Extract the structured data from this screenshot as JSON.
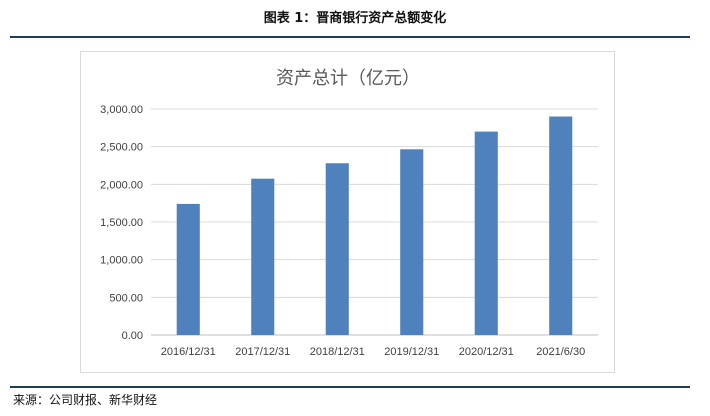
{
  "figure": {
    "caption": "图表 1：晋商银行资产总额变化",
    "source": "来源：公司财报、新华财经"
  },
  "colors": {
    "bar": "#4f81bd",
    "rule": "#1f3b57"
  },
  "chart_data": {
    "type": "bar",
    "title": "资产总计（亿元）",
    "categories": [
      "2016/12/31",
      "2017/12/31",
      "2018/12/31",
      "2019/12/31",
      "2020/12/31",
      "2021/6/30"
    ],
    "values": [
      1740,
      2075,
      2280,
      2465,
      2700,
      2900
    ],
    "ylim": [
      0,
      3000
    ],
    "yticks": [
      0,
      500,
      1000,
      1500,
      2000,
      2500,
      3000
    ],
    "ytick_labels": [
      "0.00",
      "500.00",
      "1,000.00",
      "1,500.00",
      "2,000.00",
      "2,500.00",
      "3,000.00"
    ],
    "grid": true,
    "legend": "none"
  }
}
